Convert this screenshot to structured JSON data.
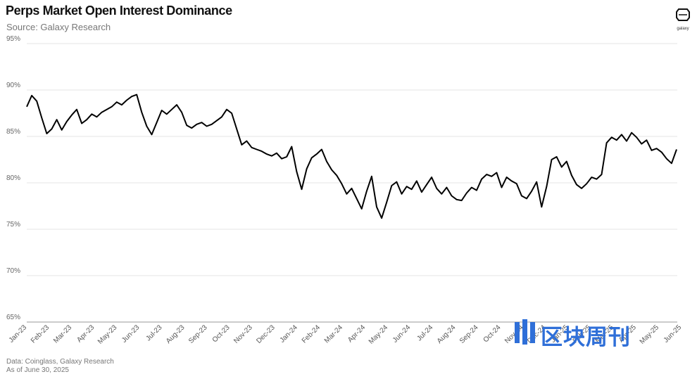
{
  "header": {
    "title": "Perps Market Open Interest Dominance",
    "subtitle": "Source: Galaxy Research",
    "logo_text": "galaxy"
  },
  "footer": {
    "line1": "Data: Coinglass, Galaxy Research",
    "line2": "As of June 30, 2025"
  },
  "watermark": {
    "text": "区块周刊",
    "color": "#2f6fd8"
  },
  "chart_data": {
    "type": "line",
    "title": "Perps Market Open Interest Dominance",
    "subtitle": "Source: Galaxy Research",
    "xlabel": "",
    "ylabel": "",
    "ylim": [
      65,
      95
    ],
    "y_ticks": [
      95,
      90,
      85,
      80,
      75,
      70,
      65
    ],
    "y_tick_labels": [
      "95%",
      "90%",
      "85%",
      "80%",
      "75%",
      "70%",
      "65%"
    ],
    "x_tick_labels": [
      "Jan-23",
      "Feb-23",
      "Mar-23",
      "Apr-23",
      "May-23",
      "Jun-23",
      "Jul-23",
      "Aug-23",
      "Sep-23",
      "Oct-23",
      "Nov-23",
      "Dec-23",
      "Jan-24",
      "Feb-24",
      "Mar-24",
      "Apr-24",
      "May-24",
      "Jun-24",
      "Jul-24",
      "Aug-24",
      "Sep-24",
      "Oct-24",
      "Nov-24",
      "Dec-24",
      "Jan-25",
      "Feb-25",
      "Mar-25",
      "Apr-25",
      "May-25",
      "Jun-25"
    ],
    "grid": true,
    "line_color": "#000000",
    "series": [
      {
        "x": [
          "2023-01-01",
          "2023-01-08",
          "2023-01-15",
          "2023-01-22",
          "2023-01-29",
          "2023-02-05",
          "2023-02-12",
          "2023-02-19",
          "2023-02-26",
          "2023-03-05",
          "2023-03-12",
          "2023-03-19",
          "2023-03-26",
          "2023-04-02",
          "2023-04-09",
          "2023-04-16",
          "2023-04-23",
          "2023-04-30",
          "2023-05-07",
          "2023-05-14",
          "2023-05-21",
          "2023-05-28",
          "2023-06-04",
          "2023-06-11",
          "2023-06-18",
          "2023-06-25",
          "2023-07-02",
          "2023-07-09",
          "2023-07-16",
          "2023-07-23",
          "2023-07-30",
          "2023-08-06",
          "2023-08-13",
          "2023-08-20",
          "2023-08-27",
          "2023-09-03",
          "2023-09-10",
          "2023-09-17",
          "2023-09-24",
          "2023-10-01",
          "2023-10-08",
          "2023-10-15",
          "2023-10-22",
          "2023-10-29",
          "2023-11-05",
          "2023-11-12",
          "2023-11-19",
          "2023-11-26",
          "2023-12-03",
          "2023-12-10",
          "2023-12-17",
          "2023-12-24",
          "2023-12-31",
          "2024-01-07",
          "2024-01-14",
          "2024-01-21",
          "2024-01-28",
          "2024-02-04",
          "2024-02-11",
          "2024-02-18",
          "2024-02-25",
          "2024-03-03",
          "2024-03-10",
          "2024-03-17",
          "2024-03-24",
          "2024-03-31",
          "2024-04-07",
          "2024-04-14",
          "2024-04-21",
          "2024-04-28",
          "2024-05-05",
          "2024-05-12",
          "2024-05-19",
          "2024-05-26",
          "2024-06-02",
          "2024-06-09",
          "2024-06-16",
          "2024-06-23",
          "2024-06-30",
          "2024-07-07",
          "2024-07-14",
          "2024-07-21",
          "2024-07-28",
          "2024-08-04",
          "2024-08-11",
          "2024-08-18",
          "2024-08-25",
          "2024-09-01",
          "2024-09-08",
          "2024-09-15",
          "2024-09-22",
          "2024-09-29",
          "2024-10-06",
          "2024-10-13",
          "2024-10-20",
          "2024-10-27",
          "2024-11-03",
          "2024-11-10",
          "2024-11-17",
          "2024-11-24",
          "2024-12-01",
          "2024-12-08",
          "2024-12-15",
          "2024-12-22",
          "2024-12-29",
          "2025-01-05",
          "2025-01-12",
          "2025-01-19",
          "2025-01-26",
          "2025-02-02",
          "2025-02-09",
          "2025-02-16",
          "2025-02-23",
          "2025-03-02",
          "2025-03-09",
          "2025-03-16",
          "2025-03-23",
          "2025-03-30",
          "2025-04-06",
          "2025-04-13",
          "2025-04-20",
          "2025-04-27",
          "2025-05-04",
          "2025-05-11",
          "2025-05-18",
          "2025-05-25",
          "2025-06-01",
          "2025-06-08",
          "2025-06-15",
          "2025-06-22",
          "2025-06-29"
        ],
        "y": [
          88.2,
          89.4,
          88.8,
          87.0,
          85.3,
          85.8,
          86.8,
          85.7,
          86.6,
          87.3,
          87.9,
          86.4,
          86.8,
          87.4,
          87.1,
          87.6,
          87.9,
          88.2,
          88.7,
          88.4,
          88.9,
          89.3,
          89.5,
          87.6,
          86.1,
          85.2,
          86.5,
          87.8,
          87.4,
          87.9,
          88.4,
          87.6,
          86.2,
          85.9,
          86.3,
          86.5,
          86.1,
          86.3,
          86.7,
          87.1,
          87.9,
          87.5,
          85.8,
          84.1,
          84.5,
          83.8,
          83.6,
          83.4,
          83.1,
          82.9,
          83.2,
          82.6,
          82.8,
          83.9,
          81.2,
          79.3,
          81.5,
          82.7,
          83.1,
          83.6,
          82.3,
          81.4,
          80.8,
          79.9,
          78.8,
          79.4,
          78.3,
          77.2,
          79.1,
          80.7,
          77.4,
          76.2,
          77.9,
          79.7,
          80.1,
          78.8,
          79.6,
          79.3,
          80.2,
          79.0,
          79.8,
          80.6,
          79.4,
          78.8,
          79.5,
          78.6,
          78.2,
          78.1,
          78.9,
          79.5,
          79.2,
          80.4,
          80.9,
          80.7,
          81.1,
          79.5,
          80.6,
          80.2,
          79.9,
          78.6,
          78.3,
          79.1,
          80.1,
          77.4,
          79.6,
          82.5,
          82.8,
          81.7,
          82.3,
          80.8,
          79.8,
          79.4,
          79.9,
          80.6,
          80.4,
          80.9,
          84.3,
          84.9,
          84.6,
          85.2,
          84.5,
          85.4,
          84.9,
          84.2,
          84.6,
          83.5,
          83.7,
          83.3,
          82.6,
          82.1,
          83.6
        ]
      }
    ]
  }
}
